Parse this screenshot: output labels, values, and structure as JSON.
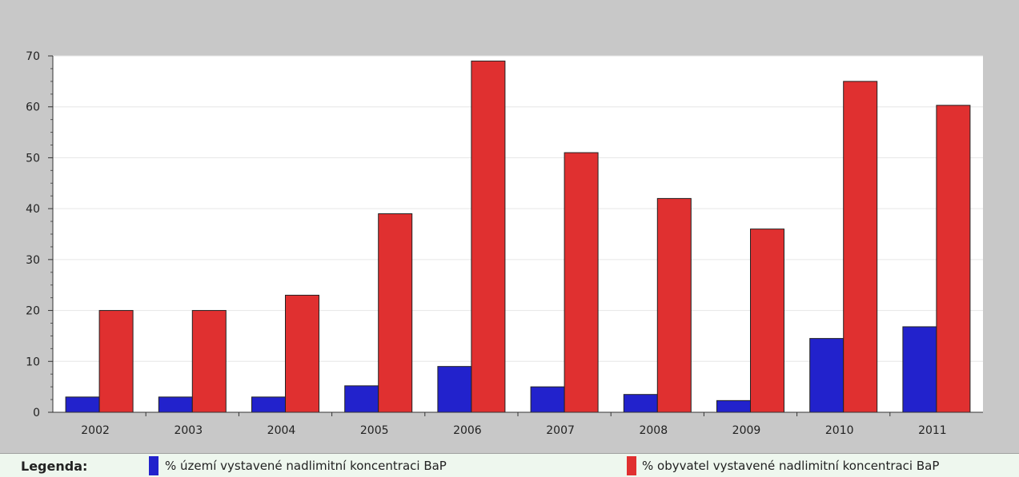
{
  "chart_data": {
    "type": "bar",
    "categories": [
      "2002",
      "2003",
      "2004",
      "2005",
      "2006",
      "2007",
      "2008",
      "2009",
      "2010",
      "2011"
    ],
    "series": [
      {
        "name": "% území vystavené nadlimitní koncentraci BaP",
        "color": "#2222cc",
        "values": [
          3,
          3,
          3,
          5.2,
          9,
          5,
          3.5,
          2.3,
          14.5,
          16.8
        ]
      },
      {
        "name": "% obyvatel vystavené nadlimitní koncentraci BaP",
        "color": "#e03030",
        "values": [
          20,
          20,
          23,
          39,
          69,
          51,
          42,
          36,
          65,
          60.3
        ]
      }
    ],
    "yticks": [
      "0",
      "10",
      "20",
      "30",
      "40",
      "50",
      "60",
      "70"
    ],
    "ylim": [
      0,
      70
    ],
    "grid": true,
    "legend": {
      "title": "Legenda:",
      "placement": "bottom"
    }
  }
}
